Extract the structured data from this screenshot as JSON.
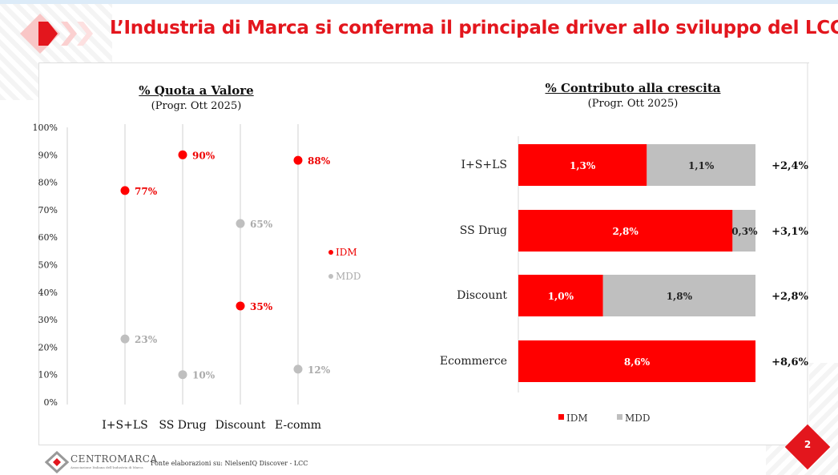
{
  "header": {
    "title": "L’Industria di Marca si conferma il principale driver allo sviluppo del LCC"
  },
  "footer": {
    "source": "Fonte elaborazioni su: NielsenIQ Discover - LCC",
    "logo": "CENTROMARCA",
    "logo_sub": "Associazione Italiana dell'Industria di Marca",
    "page": "2"
  },
  "colors": {
    "idm": "#ff0000",
    "mdd": "#bfbfbf",
    "brand": "#e3161d"
  },
  "chart_data": [
    {
      "type": "scatter",
      "title": "% Quota a Valore",
      "subtitle": "(Progr. Ott 2025)",
      "categories": [
        "I+S+LS",
        "SS Drug",
        "Discount",
        "E-comm"
      ],
      "ylim": [
        0,
        100
      ],
      "yticks": [
        "0%",
        "10%",
        "20%",
        "30%",
        "40%",
        "50%",
        "60%",
        "70%",
        "80%",
        "90%",
        "100%"
      ],
      "series": [
        {
          "name": "IDM",
          "values": [
            77,
            90,
            35,
            88
          ],
          "labels": [
            "77%",
            "90%",
            "35%",
            "88%"
          ]
        },
        {
          "name": "MDD",
          "values": [
            23,
            10,
            65,
            12
          ],
          "labels": [
            "23%",
            "10%",
            "65%",
            "12%"
          ]
        }
      ],
      "legend": "right"
    },
    {
      "type": "bar",
      "stacked": "100%",
      "title": "% Contributo alla crescita",
      "subtitle": "(Progr. Ott 2025)",
      "categories": [
        "I+S+LS",
        "SS Drug",
        "Discount",
        "Ecommerce"
      ],
      "series": [
        {
          "name": "IDM",
          "values": [
            1.3,
            2.8,
            1.0,
            8.6
          ],
          "labels": [
            "1,3%",
            "2,8%",
            "1,0%",
            "8,6%"
          ]
        },
        {
          "name": "MDD",
          "values": [
            1.1,
            0.3,
            1.8,
            0
          ],
          "labels": [
            "1,1%",
            "0,3%",
            "1,8%",
            ""
          ]
        }
      ],
      "totals": [
        "+2,4%",
        "+3,1%",
        "+2,8%",
        "+8,6%"
      ],
      "legend": "bottom"
    }
  ]
}
